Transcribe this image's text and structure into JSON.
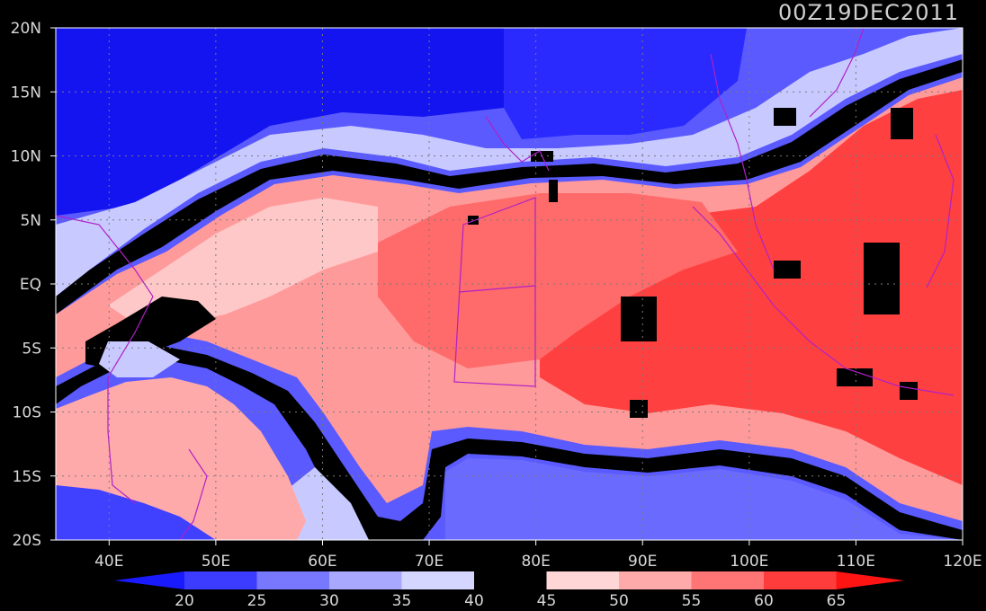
{
  "title": "00Z19DEC2011",
  "map": {
    "lat_labels": [
      "20N",
      "15N",
      "10N",
      "5N",
      "EQ",
      "5S",
      "10S",
      "15S",
      "20S"
    ],
    "lon_labels": [
      "40E",
      "50E",
      "60E",
      "70E",
      "80E",
      "90E",
      "100E",
      "110E",
      "120E"
    ],
    "lon_range": [
      35,
      120
    ],
    "lat_range": [
      -20,
      20
    ]
  },
  "colorbar": {
    "ticks": [
      "20",
      "25",
      "30",
      "35",
      "40",
      "45",
      "50",
      "55",
      "60",
      "65"
    ],
    "colors": [
      "#1a1aff",
      "#3c3cff",
      "#7878ff",
      "#a8a8ff",
      "#d4d6ff",
      "#000000",
      "#ffd6d6",
      "#ffaaaa",
      "#ff7474",
      "#ff3c3c",
      "#ff1414"
    ]
  },
  "field_colors": {
    "blue_deep": "#1010f0",
    "blue_mid": "#4646ff",
    "blue_light": "#8c8cff",
    "blue_pale": "#c8caff",
    "black": "#000000",
    "red_pale": "#ffc8c8",
    "red_light": "#ff9a9a",
    "red_mid": "#ff6a6a",
    "red_deep": "#ff3434",
    "coast": "#b020c8"
  }
}
